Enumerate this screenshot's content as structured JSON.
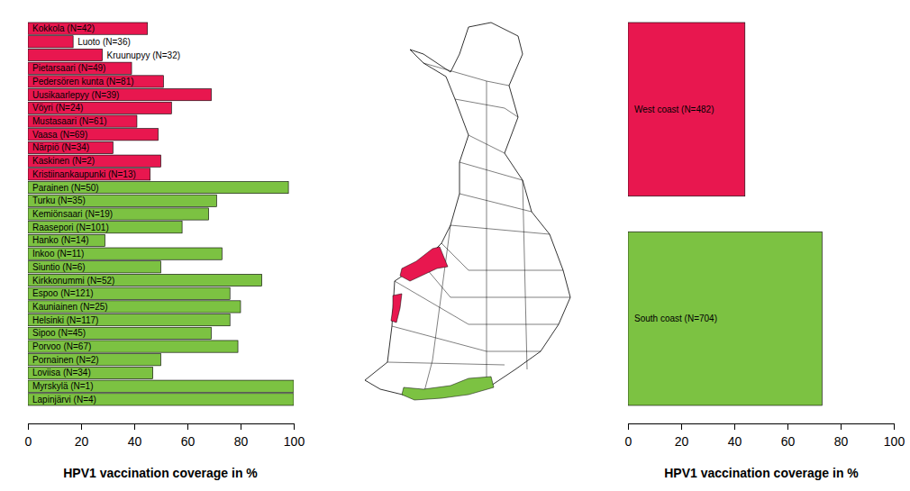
{
  "chart_data": [
    {
      "type": "bar",
      "orientation": "horizontal",
      "categories": [
        "Kokkola (N=42)",
        "Luoto (N=36)",
        "Kruunupyy (N=32)",
        "Pietarsaari (N=49)",
        "Pedersören kunta (N=81)",
        "Uusikaarlepyy (N=39)",
        "Vöyri (N=24)",
        "Mustasaari (N=61)",
        "Vaasa (N=69)",
        "Närpiö (N=34)",
        "Kaskinen (N=2)",
        "Kristiinankaupunki (N=13)",
        "Parainen (N=50)",
        "Turku (N=35)",
        "Kemiönsaari (N=19)",
        "Raasepori (N=101)",
        "Hanko (N=14)",
        "Inkoo (N=11)",
        "Siuntio (N=6)",
        "Kirkkonummi (N=52)",
        "Espoo (N=121)",
        "Kauniainen (N=25)",
        "Helsinki (N=117)",
        "Sipoo (N=45)",
        "Porvoo (N=67)",
        "Pornainen (N=2)",
        "Loviisa (N=34)",
        "Myrskylä (N=1)",
        "Lapinjärvi (N=4)"
      ],
      "values": [
        45,
        17,
        28,
        39,
        51,
        69,
        54,
        41,
        49,
        32,
        50,
        46,
        98,
        71,
        68,
        58,
        29,
        73,
        50,
        88,
        76,
        80,
        76,
        69,
        79,
        50,
        47,
        100,
        100
      ],
      "colors": [
        "#e8174f",
        "#e8174f",
        "#e8174f",
        "#e8174f",
        "#e8174f",
        "#e8174f",
        "#e8174f",
        "#e8174f",
        "#e8174f",
        "#e8174f",
        "#e8174f",
        "#e8174f",
        "#7cc242",
        "#7cc242",
        "#7cc242",
        "#7cc242",
        "#7cc242",
        "#7cc242",
        "#7cc242",
        "#7cc242",
        "#7cc242",
        "#7cc242",
        "#7cc242",
        "#7cc242",
        "#7cc242",
        "#7cc242",
        "#7cc242",
        "#7cc242",
        "#7cc242"
      ],
      "xlim": [
        0,
        100
      ],
      "xticks": [
        0,
        20,
        40,
        60,
        80,
        100
      ],
      "x_label": "HPV1 vaccination coverage in %"
    },
    {
      "type": "bar",
      "orientation": "horizontal",
      "categories": [
        "West coast (N=482)",
        "South coast (N=704)"
      ],
      "values": [
        44,
        73
      ],
      "colors": [
        "#e8174f",
        "#7cc242"
      ],
      "xlim": [
        0,
        100
      ],
      "xticks": [
        0,
        20,
        40,
        60,
        80,
        100
      ],
      "x_label": "HPV1 vaccination coverage in %"
    }
  ]
}
